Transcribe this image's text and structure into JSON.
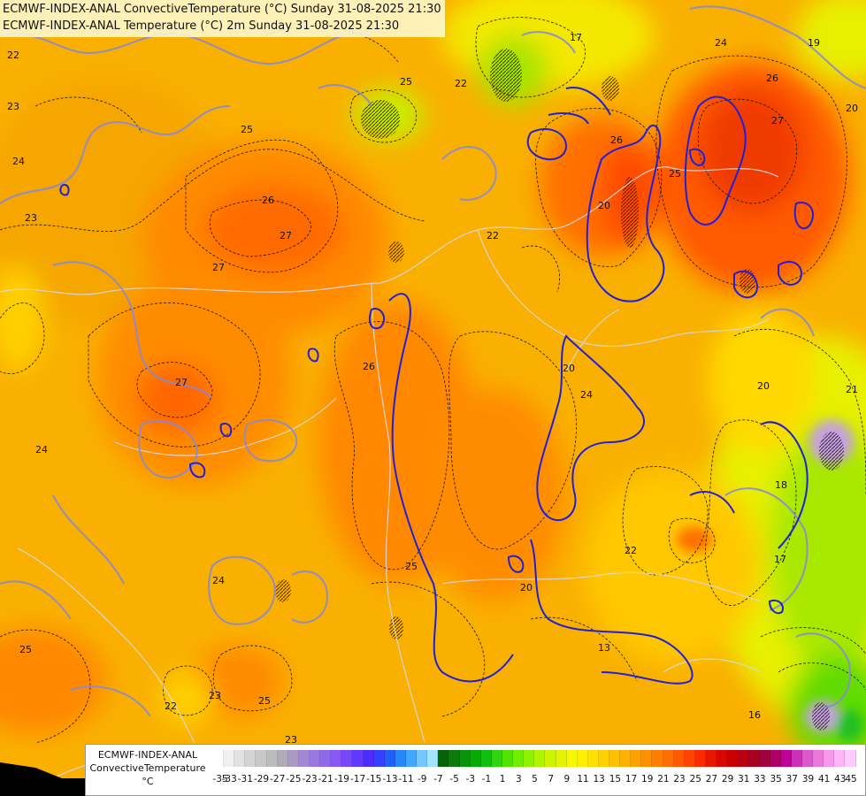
{
  "header": {
    "line1": "ECMWF-INDEX-ANAL ConvectiveTemperature (°C) Sunday 31-08-2025 21:30",
    "line2": "ECMWF-INDEX-ANAL Temperature (°C) 2m Sunday 31-08-2025 21:30"
  },
  "map_labels": {
    "l1": "17",
    "l2": "22",
    "l3": "24",
    "l4": "26",
    "l5": "19",
    "l6": "20",
    "l7": "23",
    "l8": "25",
    "l9": "25",
    "l10": "23",
    "l11": "22",
    "l12": "24",
    "l13": "26",
    "l14": "27",
    "l15": "27",
    "l16": "27",
    "l17": "26",
    "l18": "20",
    "l19": "24",
    "l20": "20",
    "l21": "21",
    "l22": "18",
    "l23": "17",
    "l24": "25",
    "l25": "24",
    "l26": "25",
    "l27": "22",
    "l28": "23",
    "l29": "25",
    "l30": "20",
    "l31": "13",
    "l32": "16",
    "l33": "23",
    "l34": "22",
    "l35": "25",
    "l36": "27",
    "l37": "26",
    "l38": "20",
    "l39": "22",
    "l40": "24"
  },
  "legend": {
    "title_line1": "ECMWF-INDEX-ANAL",
    "title_line2": "ConvectiveTemperature",
    "unit": "°C",
    "ticks": [
      "-35",
      "-33",
      "-31",
      "-29",
      "-27",
      "-25",
      "-23",
      "-21",
      "-19",
      "-17",
      "-15",
      "-13",
      "-11",
      "-9",
      "-7",
      "-5",
      "-3",
      "-1",
      "1",
      "3",
      "5",
      "7",
      "9",
      "11",
      "13",
      "15",
      "17",
      "19",
      "21",
      "23",
      "25",
      "27",
      "29",
      "31",
      "33",
      "35",
      "37",
      "39",
      "41",
      "43",
      "45"
    ],
    "colors": [
      "#ffffff",
      "#f4f4f4",
      "#e8e8e8",
      "#dcdcdc",
      "#d0d0d0",
      "#c4c4c4",
      "#b8b8b8",
      "#aca8b8",
      "#a890c8",
      "#a080d8",
      "#9870e0",
      "#9060e8",
      "#8050f0",
      "#7040f8",
      "#6030ff",
      "#5030ff",
      "#3030ff",
      "#2040f0",
      "#1050f0",
      "#1070f0",
      "#2090f8",
      "#40a8ff",
      "#60c0ff",
      "#80d8ff",
      "#a0e8ff",
      "#006000",
      "#007800",
      "#009000",
      "#00a800",
      "#00c000",
      "#20d000",
      "#40e000",
      "#60ee00",
      "#80f000",
      "#a0f000",
      "#c0f000",
      "#d8f000",
      "#f0f000",
      "#ffff00",
      "#ffe800",
      "#ffd800",
      "#ffc800",
      "#ffb800",
      "#ffa800",
      "#ff9800",
      "#ff8800",
      "#ff7000",
      "#ff5800",
      "#ff4000",
      "#f02800",
      "#e01000",
      "#d00000",
      "#c00000",
      "#b00010",
      "#a00020",
      "#a00040",
      "#b00070",
      "#c000a0",
      "#d040c0",
      "#e060d0",
      "#f080e0",
      "#ff98f0",
      "#ffb0ff",
      "#ffc8ff"
    ],
    "colors_main": [
      "#ffffff",
      "#f0f0f0",
      "#e2e2e2",
      "#d4d4d4",
      "#c8c8c8",
      "#bcbcbc",
      "#b0aab8",
      "#a89ac4",
      "#a088d4",
      "#9878e0",
      "#9068ea",
      "#8858f4",
      "#7848f8",
      "#6038ff",
      "#4a2cff",
      "#3440ff",
      "#2060f8",
      "#2488fa",
      "#40a8ff",
      "#70c8ff",
      "#a0e4ff",
      "#046404",
      "#0a7a0a",
      "#0a920a",
      "#08aa08",
      "#10c010",
      "#30d410",
      "#50e400",
      "#70ee00",
      "#90f200",
      "#b0f400",
      "#ccf400",
      "#e4f400",
      "#f8f800",
      "#fff000",
      "#ffe000",
      "#ffd000",
      "#ffc000",
      "#ffb000",
      "#ffa000",
      "#ff9000",
      "#ff8000",
      "#ff6e00",
      "#ff5a00",
      "#ff4400",
      "#f82c00",
      "#e81800",
      "#d80800",
      "#c80000",
      "#b80010",
      "#a80020",
      "#a00040",
      "#b00068",
      "#c00098",
      "#cc30b8",
      "#dc58cc",
      "#ec78dc",
      "#f898ec",
      "#ffb4f8",
      "#ffccff"
    ]
  }
}
